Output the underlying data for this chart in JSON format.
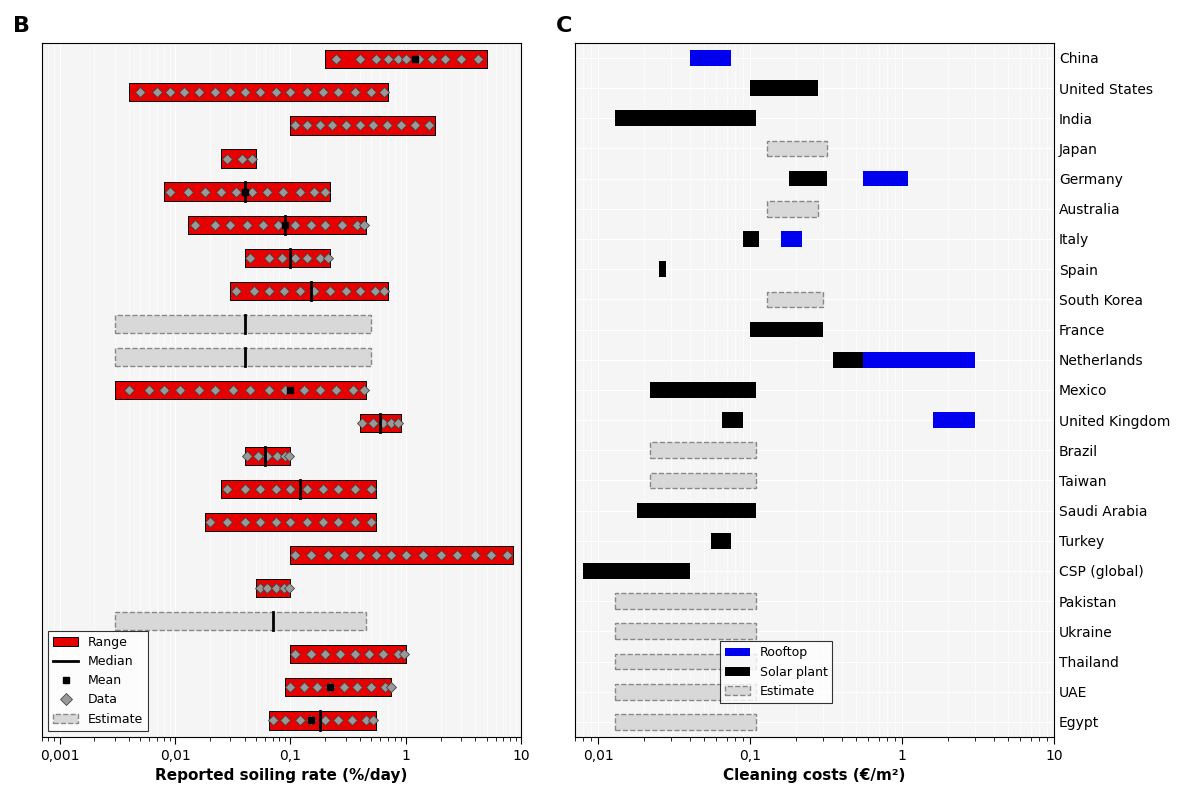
{
  "panel_B_label": "B",
  "panel_C_label": "C",
  "soiling_xlabel": "Reported soiling rate (%/day)",
  "cleaning_xlabel": "Cleaning costs (€/m²)",
  "soiling_xlim": [
    0.0007,
    10
  ],
  "cleaning_xlim": [
    0.007,
    10
  ],
  "soiling_xticks": [
    0.001,
    0.01,
    0.1,
    1,
    10
  ],
  "soiling_xtick_labels": [
    "0,001",
    "0,01",
    "0,1",
    "1",
    "10"
  ],
  "cleaning_xticks": [
    0.01,
    0.1,
    1,
    10
  ],
  "cleaning_xtick_labels": [
    "0,01",
    "0,1",
    "1",
    "10"
  ],
  "countries_C": [
    "China",
    "United States",
    "India",
    "Japan",
    "Germany",
    "Australia",
    "Italy",
    "Spain",
    "South Korea",
    "France",
    "Netherlands",
    "Mexico",
    "United Kingdom",
    "Brazil",
    "Taiwan",
    "Saudi Arabia",
    "Turkey",
    "CSP (global)",
    "Pakistan",
    "Ukraine",
    "Thailand",
    "UAE",
    "Egypt"
  ],
  "cleaning_data": [
    {
      "country": "China",
      "rooftop": [
        0.04,
        0.075
      ],
      "solar_plant": null,
      "estimate": null
    },
    {
      "country": "United States",
      "rooftop": null,
      "solar_plant": [
        0.1,
        0.28
      ],
      "estimate": null
    },
    {
      "country": "India",
      "rooftop": null,
      "solar_plant": [
        0.013,
        0.11
      ],
      "estimate": null
    },
    {
      "country": "Japan",
      "rooftop": null,
      "solar_plant": null,
      "estimate": [
        0.13,
        0.32
      ]
    },
    {
      "country": "Germany",
      "rooftop": [
        0.55,
        1.1
      ],
      "solar_plant": [
        0.18,
        0.32
      ],
      "estimate": null
    },
    {
      "country": "Australia",
      "rooftop": null,
      "solar_plant": null,
      "estimate": [
        0.13,
        0.28
      ]
    },
    {
      "country": "Italy",
      "rooftop": [
        0.16,
        0.22
      ],
      "solar_plant": [
        0.09,
        0.115
      ],
      "estimate": null
    },
    {
      "country": "Spain",
      "rooftop": null,
      "solar_plant": [
        0.025,
        0.028
      ],
      "estimate": null
    },
    {
      "country": "South Korea",
      "rooftop": null,
      "solar_plant": null,
      "estimate": [
        0.13,
        0.3
      ]
    },
    {
      "country": "France",
      "rooftop": null,
      "solar_plant": [
        0.1,
        0.3
      ],
      "estimate": null
    },
    {
      "country": "Netherlands",
      "rooftop": [
        0.55,
        3.0
      ],
      "solar_plant": [
        0.35,
        0.55
      ],
      "estimate": null
    },
    {
      "country": "Mexico",
      "rooftop": null,
      "solar_plant": [
        0.022,
        0.11
      ],
      "estimate": null
    },
    {
      "country": "United Kingdom",
      "rooftop": [
        1.6,
        3.0
      ],
      "solar_plant": [
        0.065,
        0.09
      ],
      "estimate": null
    },
    {
      "country": "Brazil",
      "rooftop": null,
      "solar_plant": null,
      "estimate": [
        0.022,
        0.11
      ]
    },
    {
      "country": "Taiwan",
      "rooftop": null,
      "solar_plant": null,
      "estimate": [
        0.022,
        0.11
      ]
    },
    {
      "country": "Saudi Arabia",
      "rooftop": null,
      "solar_plant": [
        0.018,
        0.11
      ],
      "estimate": null
    },
    {
      "country": "Turkey",
      "rooftop": null,
      "solar_plant": [
        0.055,
        0.075
      ],
      "estimate": null
    },
    {
      "country": "CSP (global)",
      "rooftop": null,
      "solar_plant": [
        0.008,
        0.04
      ],
      "estimate": null
    },
    {
      "country": "Pakistan",
      "rooftop": null,
      "solar_plant": null,
      "estimate": [
        0.013,
        0.11
      ]
    },
    {
      "country": "Ukraine",
      "rooftop": null,
      "solar_plant": null,
      "estimate": [
        0.013,
        0.11
      ]
    },
    {
      "country": "Thailand",
      "rooftop": null,
      "solar_plant": null,
      "estimate": [
        0.013,
        0.11
      ]
    },
    {
      "country": "UAE",
      "rooftop": null,
      "solar_plant": null,
      "estimate": [
        0.013,
        0.11
      ]
    },
    {
      "country": "Egypt",
      "rooftop": null,
      "solar_plant": null,
      "estimate": [
        0.013,
        0.11
      ]
    }
  ],
  "soiling_data": [
    {
      "row": 0,
      "type": "red",
      "xmin": 0.2,
      "xmax": 5.0,
      "median": null,
      "mean": 1.2,
      "data_pts": [
        0.25,
        0.4,
        0.55,
        0.7,
        0.85,
        1.0,
        1.3,
        1.7,
        2.2,
        3.0,
        4.2
      ]
    },
    {
      "row": 1,
      "type": "red",
      "xmin": 0.004,
      "xmax": 0.7,
      "median": null,
      "mean": null,
      "data_pts": [
        0.005,
        0.007,
        0.009,
        0.012,
        0.016,
        0.022,
        0.03,
        0.04,
        0.055,
        0.075,
        0.1,
        0.14,
        0.19,
        0.26,
        0.36,
        0.5,
        0.65
      ]
    },
    {
      "row": 2,
      "type": "red",
      "xmin": 0.1,
      "xmax": 1.8,
      "median": null,
      "mean": null,
      "data_pts": [
        0.11,
        0.14,
        0.18,
        0.23,
        0.3,
        0.4,
        0.52,
        0.68,
        0.9,
        1.2,
        1.6
      ]
    },
    {
      "row": 3,
      "type": "red",
      "xmin": 0.025,
      "xmax": 0.05,
      "median": null,
      "mean": null,
      "data_pts": [
        0.028,
        0.038,
        0.046
      ]
    },
    {
      "row": 4,
      "type": "red",
      "xmin": 0.008,
      "xmax": 0.22,
      "median": 0.04,
      "mean": 0.04,
      "data_pts": [
        0.009,
        0.013,
        0.018,
        0.025,
        0.034,
        0.046,
        0.063,
        0.086,
        0.12,
        0.16,
        0.2
      ]
    },
    {
      "row": 5,
      "type": "red",
      "xmin": 0.013,
      "xmax": 0.45,
      "median": 0.09,
      "mean": 0.09,
      "data_pts": [
        0.015,
        0.022,
        0.03,
        0.042,
        0.058,
        0.078,
        0.11,
        0.15,
        0.2,
        0.28,
        0.38,
        0.43
      ]
    },
    {
      "row": 6,
      "type": "red",
      "xmin": 0.04,
      "xmax": 0.22,
      "median": 0.1,
      "mean": null,
      "data_pts": [
        0.045,
        0.065,
        0.085,
        0.11,
        0.14,
        0.18,
        0.21
      ]
    },
    {
      "row": 7,
      "type": "red",
      "xmin": 0.03,
      "xmax": 0.7,
      "median": 0.15,
      "mean": null,
      "data_pts": [
        0.034,
        0.048,
        0.065,
        0.088,
        0.12,
        0.16,
        0.22,
        0.3,
        0.4,
        0.54,
        0.65
      ]
    },
    {
      "row": 8,
      "type": "estimate",
      "xmin": 0.003,
      "xmax": 0.5,
      "median": 0.04,
      "mean": null,
      "data_pts": []
    },
    {
      "row": 9,
      "type": "estimate",
      "xmin": 0.003,
      "xmax": 0.5,
      "median": 0.04,
      "mean": null,
      "data_pts": []
    },
    {
      "row": 10,
      "type": "red",
      "xmin": 0.003,
      "xmax": 0.45,
      "median": null,
      "mean": 0.1,
      "data_pts": [
        0.004,
        0.006,
        0.008,
        0.011,
        0.016,
        0.022,
        0.032,
        0.045,
        0.065,
        0.09,
        0.13,
        0.18,
        0.25,
        0.35,
        0.43
      ]
    },
    {
      "row": 11,
      "type": "red",
      "xmin": 0.4,
      "xmax": 0.9,
      "median": 0.6,
      "mean": null,
      "data_pts": [
        0.42,
        0.52,
        0.63,
        0.75,
        0.85
      ]
    },
    {
      "row": 12,
      "type": "red",
      "xmin": 0.04,
      "xmax": 0.1,
      "median": 0.06,
      "mean": null,
      "data_pts": [
        0.042,
        0.052,
        0.063,
        0.076,
        0.09,
        0.098
      ]
    },
    {
      "row": 13,
      "type": "red",
      "xmin": 0.025,
      "xmax": 0.55,
      "median": 0.12,
      "mean": null,
      "data_pts": [
        0.028,
        0.04,
        0.055,
        0.075,
        0.1,
        0.14,
        0.19,
        0.26,
        0.36,
        0.5
      ]
    },
    {
      "row": 14,
      "type": "red",
      "xmin": 0.018,
      "xmax": 0.55,
      "median": null,
      "mean": null,
      "data_pts": [
        0.02,
        0.028,
        0.04,
        0.055,
        0.075,
        0.1,
        0.14,
        0.19,
        0.26,
        0.36,
        0.5
      ]
    },
    {
      "row": 15,
      "type": "red",
      "xmin": 0.1,
      "xmax": 8.5,
      "median": null,
      "mean": null,
      "data_pts": [
        0.11,
        0.15,
        0.21,
        0.29,
        0.4,
        0.55,
        0.75,
        1.0,
        1.4,
        2.0,
        2.8,
        4.0,
        5.5,
        7.5
      ]
    },
    {
      "row": 16,
      "type": "red",
      "xmin": 0.05,
      "xmax": 0.1,
      "median": null,
      "mean": null,
      "data_pts": [
        0.054,
        0.063,
        0.075,
        0.088,
        0.098
      ]
    },
    {
      "row": 17,
      "type": "estimate",
      "xmin": 0.003,
      "xmax": 0.45,
      "median": 0.07,
      "mean": null,
      "data_pts": []
    },
    {
      "row": 18,
      "type": "red",
      "xmin": 0.1,
      "xmax": 1.0,
      "median": null,
      "mean": null,
      "data_pts": [
        0.11,
        0.15,
        0.2,
        0.27,
        0.36,
        0.48,
        0.64,
        0.86,
        0.97
      ]
    },
    {
      "row": 19,
      "type": "red",
      "xmin": 0.09,
      "xmax": 0.75,
      "median": null,
      "mean": 0.22,
      "data_pts": [
        0.1,
        0.13,
        0.17,
        0.22,
        0.29,
        0.38,
        0.5,
        0.66,
        0.74
      ]
    },
    {
      "row": 20,
      "type": "red",
      "xmin": 0.065,
      "xmax": 0.55,
      "median": 0.18,
      "mean": 0.15,
      "data_pts": [
        0.07,
        0.09,
        0.12,
        0.15,
        0.2,
        0.26,
        0.34,
        0.45,
        0.52
      ]
    }
  ],
  "bar_height": 0.55,
  "red_color": "#e60000",
  "estimate_facecolor": "#d8d8d8",
  "estimate_edgecolor": "#888888",
  "blue_color": "#0000ee",
  "black_color": "#000000",
  "background_color": "#f5f5f5"
}
